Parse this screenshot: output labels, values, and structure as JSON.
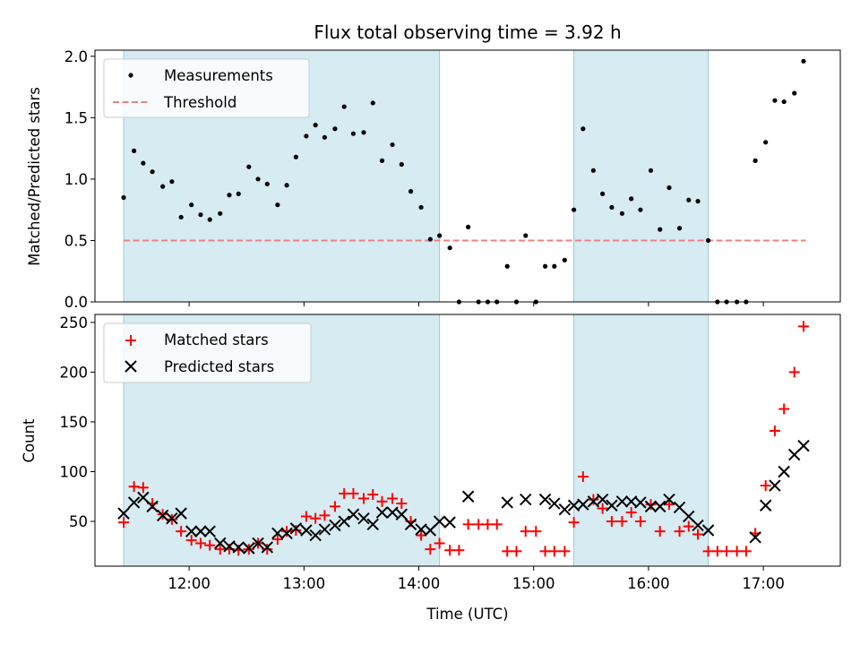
{
  "chart_data": [
    {
      "type": "scatter",
      "title": "Flux total observing time = 3.92 h",
      "xlabel": "",
      "ylabel": "Matched/Predicted stars",
      "xlim": [
        11.18,
        17.67
      ],
      "ylim": [
        0,
        2.05
      ],
      "yticks": [
        0.0,
        0.5,
        1.0,
        1.5,
        2.0
      ],
      "ytick_labels": [
        "0.0",
        "0.5",
        "1.0",
        "1.5",
        "2.0"
      ],
      "legend": {
        "position": "top-left",
        "entries": [
          "Measurements",
          "Threshold"
        ]
      },
      "shaded_intervals": [
        [
          11.43,
          14.18
        ],
        [
          15.35,
          16.52
        ]
      ],
      "threshold": {
        "name": "Threshold",
        "value": 0.5,
        "x_start": 11.43,
        "x_end": 17.37,
        "color": "#f08080"
      },
      "series": [
        {
          "name": "Measurements",
          "color": "#000000",
          "marker": "dot",
          "x": [
            11.43,
            11.52,
            11.6,
            11.68,
            11.77,
            11.85,
            11.93,
            12.02,
            12.1,
            12.18,
            12.27,
            12.35,
            12.43,
            12.52,
            12.6,
            12.68,
            12.77,
            12.85,
            12.93,
            13.02,
            13.1,
            13.18,
            13.27,
            13.35,
            13.43,
            13.52,
            13.6,
            13.68,
            13.77,
            13.85,
            13.93,
            14.02,
            14.1,
            14.18,
            14.27,
            14.35,
            14.43,
            14.52,
            14.6,
            14.68,
            14.77,
            14.85,
            14.93,
            15.02,
            15.1,
            15.18,
            15.27,
            15.35,
            15.43,
            15.52,
            15.6,
            15.68,
            15.77,
            15.85,
            15.93,
            16.02,
            16.1,
            16.18,
            16.27,
            16.35,
            16.43,
            16.52,
            16.6,
            16.68,
            16.77,
            16.85,
            16.93,
            17.02,
            17.1,
            17.18,
            17.27,
            17.35
          ],
          "y": [
            0.85,
            1.23,
            1.13,
            1.06,
            0.94,
            0.98,
            0.69,
            0.79,
            0.71,
            0.67,
            0.72,
            0.87,
            0.88,
            1.1,
            1.0,
            0.96,
            0.79,
            0.95,
            1.18,
            1.35,
            1.44,
            1.34,
            1.41,
            1.59,
            1.37,
            1.38,
            1.62,
            1.15,
            1.28,
            1.12,
            0.9,
            0.77,
            0.51,
            0.54,
            0.44,
            0.0,
            0.61,
            0.0,
            0.0,
            0.0,
            0.29,
            0.0,
            0.54,
            0.0,
            0.29,
            0.29,
            0.34,
            0.75,
            1.41,
            1.07,
            0.88,
            0.77,
            0.72,
            0.84,
            0.75,
            1.07,
            0.59,
            0.93,
            0.6,
            0.83,
            0.82,
            0.5,
            0.0,
            0.0,
            0.0,
            0.0,
            1.15,
            1.3,
            1.64,
            1.63,
            1.7,
            1.96
          ]
        }
      ]
    },
    {
      "type": "scatter",
      "title": "",
      "xlabel": "Time (UTC)",
      "ylabel": "Count",
      "xlim": [
        11.18,
        17.67
      ],
      "ylim": [
        5,
        258
      ],
      "yticks": [
        50,
        100,
        150,
        200,
        250
      ],
      "ytick_labels": [
        "50",
        "100",
        "150",
        "200",
        "250"
      ],
      "xticks": [
        12,
        13,
        14,
        15,
        16,
        17
      ],
      "xtick_labels": [
        "12:00",
        "13:00",
        "14:00",
        "15:00",
        "16:00",
        "17:00"
      ],
      "legend": {
        "position": "top-left",
        "entries": [
          "Matched stars",
          "Predicted stars"
        ]
      },
      "shaded_intervals": [
        [
          11.43,
          14.18
        ],
        [
          15.35,
          16.52
        ]
      ],
      "series": [
        {
          "name": "Matched stars",
          "color": "#ff0000",
          "marker": "plus",
          "x": [
            11.43,
            11.52,
            11.6,
            11.68,
            11.77,
            11.85,
            11.93,
            12.02,
            12.1,
            12.18,
            12.27,
            12.35,
            12.43,
            12.52,
            12.6,
            12.68,
            12.77,
            12.85,
            12.93,
            13.02,
            13.1,
            13.18,
            13.27,
            13.35,
            13.43,
            13.52,
            13.6,
            13.68,
            13.77,
            13.85,
            13.93,
            14.02,
            14.1,
            14.18,
            14.27,
            14.35,
            14.43,
            14.52,
            14.6,
            14.68,
            14.77,
            14.85,
            14.93,
            15.02,
            15.1,
            15.18,
            15.27,
            15.35,
            15.43,
            15.52,
            15.6,
            15.68,
            15.77,
            15.85,
            15.93,
            16.02,
            16.1,
            16.18,
            16.27,
            16.35,
            16.43,
            16.52,
            16.6,
            16.68,
            16.77,
            16.85,
            16.93,
            17.02,
            17.1,
            17.18,
            17.27,
            17.35
          ],
          "y": [
            49,
            85,
            84,
            68,
            57,
            52,
            40,
            31,
            28,
            26,
            22,
            22,
            21,
            22,
            28,
            22,
            32,
            40,
            41,
            55,
            53,
            56,
            65,
            78,
            78,
            73,
            77,
            70,
            73,
            68,
            50,
            36,
            22,
            28,
            21,
            21,
            47,
            47,
            47,
            47,
            20,
            20,
            40,
            40,
            20,
            20,
            20,
            49,
            95,
            72,
            63,
            50,
            50,
            59,
            50,
            67,
            40,
            67,
            40,
            45,
            37,
            20,
            20,
            20,
            20,
            20,
            38,
            86,
            141,
            163,
            200,
            246
          ]
        },
        {
          "name": "Predicted stars",
          "color": "#000000",
          "marker": "x",
          "x": [
            11.43,
            11.52,
            11.6,
            11.68,
            11.77,
            11.85,
            11.93,
            12.02,
            12.1,
            12.18,
            12.27,
            12.35,
            12.43,
            12.52,
            12.6,
            12.68,
            12.77,
            12.85,
            12.93,
            13.02,
            13.1,
            13.18,
            13.27,
            13.35,
            13.43,
            13.52,
            13.6,
            13.68,
            13.77,
            13.85,
            13.93,
            14.02,
            14.1,
            14.18,
            14.27,
            14.43,
            14.77,
            14.93,
            15.1,
            15.18,
            15.27,
            15.35,
            15.43,
            15.52,
            15.6,
            15.68,
            15.77,
            15.85,
            15.93,
            16.02,
            16.1,
            16.18,
            16.27,
            16.35,
            16.43,
            16.52,
            16.93,
            17.02,
            17.1,
            17.18,
            17.27,
            17.35
          ],
          "y": [
            58,
            69,
            74,
            65,
            56,
            53,
            58,
            40,
            40,
            40,
            28,
            25,
            24,
            23,
            28,
            24,
            38,
            38,
            43,
            41,
            36,
            42,
            46,
            50,
            57,
            53,
            47,
            59,
            59,
            57,
            47,
            42,
            41,
            50,
            49,
            75,
            69,
            72,
            72,
            68,
            62,
            66,
            67,
            70,
            72,
            66,
            70,
            70,
            69,
            65,
            65,
            72,
            64,
            55,
            46,
            41,
            34,
            66,
            86,
            100,
            117,
            126
          ]
        }
      ]
    }
  ]
}
